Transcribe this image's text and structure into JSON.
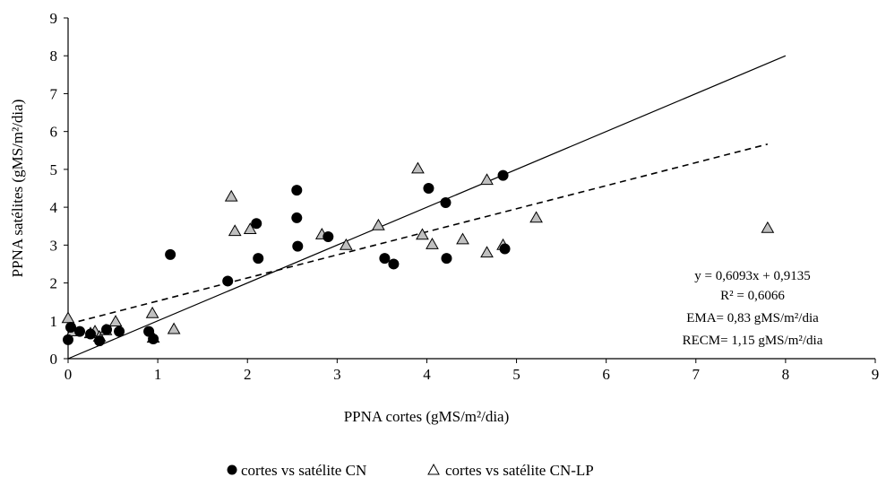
{
  "chart_data": {
    "type": "scatter",
    "xlabel": "PPNA cortes (gMS/m²/dia)",
    "ylabel": "PPNA satélites (gMS/m²/dia)",
    "xlim": [
      0,
      9
    ],
    "ylim": [
      0,
      9
    ],
    "xticks": [
      "0",
      "1",
      "2",
      "3",
      "4",
      "5",
      "6",
      "7",
      "8",
      "9"
    ],
    "yticks": [
      "0",
      "1",
      "2",
      "3",
      "4",
      "5",
      "6",
      "7",
      "8",
      "9"
    ],
    "grid": false,
    "legend_position": "bottom",
    "series": [
      {
        "name": "cortes vs satélite CN",
        "marker": "circle",
        "color": "#000000",
        "points": [
          [
            0.0,
            0.5
          ],
          [
            0.03,
            0.83
          ],
          [
            0.13,
            0.72
          ],
          [
            0.25,
            0.65
          ],
          [
            0.35,
            0.47
          ],
          [
            0.43,
            0.77
          ],
          [
            0.57,
            0.72
          ],
          [
            0.9,
            0.72
          ],
          [
            0.95,
            0.52
          ],
          [
            1.14,
            2.75
          ],
          [
            1.78,
            2.05
          ],
          [
            2.1,
            3.57
          ],
          [
            2.12,
            2.65
          ],
          [
            2.55,
            4.45
          ],
          [
            2.55,
            3.72
          ],
          [
            2.56,
            2.97
          ],
          [
            2.9,
            3.22
          ],
          [
            3.53,
            2.65
          ],
          [
            3.63,
            2.5
          ],
          [
            4.02,
            4.5
          ],
          [
            4.21,
            4.12
          ],
          [
            4.22,
            2.65
          ],
          [
            4.85,
            4.84
          ],
          [
            4.87,
            2.9
          ]
        ]
      },
      {
        "name": "cortes vs satélite CN-LP",
        "marker": "triangle",
        "color": "#c0c0c0",
        "points": [
          [
            0.0,
            1.07
          ],
          [
            0.05,
            0.72
          ],
          [
            0.25,
            0.67
          ],
          [
            0.3,
            0.72
          ],
          [
            0.35,
            0.58
          ],
          [
            0.42,
            0.75
          ],
          [
            0.53,
            0.98
          ],
          [
            0.94,
            1.2
          ],
          [
            0.95,
            0.55
          ],
          [
            1.18,
            0.78
          ],
          [
            1.82,
            4.28
          ],
          [
            1.86,
            3.37
          ],
          [
            2.03,
            3.42
          ],
          [
            2.83,
            3.28
          ],
          [
            3.1,
            3.0
          ],
          [
            3.46,
            3.52
          ],
          [
            3.9,
            5.02
          ],
          [
            3.95,
            3.27
          ],
          [
            4.06,
            3.02
          ],
          [
            4.4,
            3.15
          ],
          [
            4.67,
            4.72
          ],
          [
            4.67,
            2.8
          ],
          [
            4.85,
            3.0
          ],
          [
            5.22,
            3.72
          ],
          [
            7.8,
            3.45
          ]
        ]
      }
    ],
    "lines": [
      {
        "kind": "identity",
        "style": "solid",
        "x": [
          0,
          8
        ],
        "y": [
          0,
          8
        ]
      },
      {
        "kind": "regression",
        "style": "dashed",
        "x": [
          0,
          7.8
        ],
        "y": [
          0.9135,
          5.666
        ]
      }
    ],
    "annotations": [
      "y = 0,6093x + 0,9135",
      "R² = 0,6066",
      "EMA= 0,83 gMS/m²/dia",
      "RECM= 1,15 gMS/m²/dia"
    ]
  }
}
